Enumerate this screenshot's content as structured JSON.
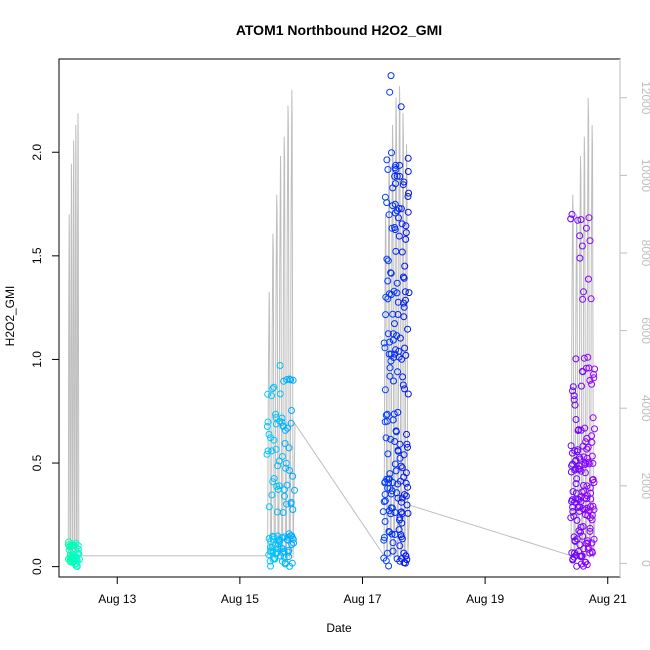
{
  "chart_data": {
    "type": "scatter",
    "title": "ATOM1 Northbound H2O2_GMI",
    "xlabel": "Date",
    "ylabel": "H2O2_GMI",
    "x_ticks": [
      "Aug 13",
      "Aug 15",
      "Aug 17",
      "Aug 19",
      "Aug 21"
    ],
    "x_range_days": [
      12.05,
      21.2
    ],
    "x_tick_days": [
      13,
      15,
      17,
      19,
      21
    ],
    "y_ticks": [
      "0.0",
      "0.5",
      "1.0",
      "1.5",
      "2.0"
    ],
    "y_tick_values": [
      0.0,
      0.5,
      1.0,
      1.5,
      2.0
    ],
    "ylim": [
      -0.05,
      2.45
    ],
    "y2_ticks": [
      "0",
      "2000",
      "4000",
      "6000",
      "8000",
      "10000",
      "12000"
    ],
    "y2_tick_values": [
      0,
      2000,
      4000,
      6000,
      8000,
      10000,
      12000
    ],
    "y2lim": [
      -350,
      13000
    ],
    "point_color_scale": [
      "#00ff99",
      "#00ccff",
      "#0033ff",
      "#8800ff"
    ],
    "secondary_line_color": "#bebebe",
    "grid": false,
    "legend": "none",
    "clusters": [
      {
        "day_start": 12.2,
        "day_end": 12.38,
        "color_start": "#00ffaa",
        "color_end": "#00ffcc",
        "h2o2_min": 0.0,
        "h2o2_max": 0.12,
        "alt_peaks": [
          9000,
          10300,
          10900,
          11300,
          11600
        ]
      },
      {
        "day_start": 15.45,
        "day_end": 15.88,
        "color_start": "#00ccff",
        "color_end": "#00aaff",
        "h2o2_min": 0.0,
        "h2o2_max": 0.98,
        "alt_peaks": [
          7000,
          8500,
          9500,
          10500,
          11000,
          11800,
          12200
        ]
      },
      {
        "day_start": 17.35,
        "day_end": 17.75,
        "color_start": "#0044ff",
        "color_end": "#0011ee",
        "h2o2_min": 0.0,
        "h2o2_max": 2.37,
        "alt_peaks": [
          9000,
          10500,
          11300,
          12000,
          12300,
          11600,
          10800
        ]
      },
      {
        "day_start": 20.4,
        "day_end": 20.78,
        "color_start": "#6600ff",
        "color_end": "#9900ff",
        "h2o2_min": 0.0,
        "h2o2_max": 1.7,
        "alt_peaks": [
          9500,
          9000,
          10500,
          11000,
          12000,
          11300
        ]
      }
    ]
  }
}
